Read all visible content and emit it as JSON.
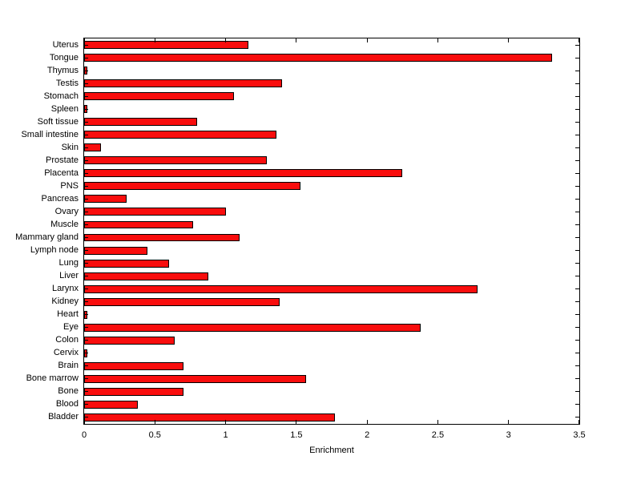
{
  "chart_data": {
    "type": "bar",
    "orientation": "horizontal",
    "title": "",
    "xlabel": "Enrichment",
    "ylabel": "",
    "xlim": [
      0,
      3.5
    ],
    "xticks": [
      0,
      0.5,
      1,
      1.5,
      2,
      2.5,
      3,
      3.5
    ],
    "xtick_labels": [
      "0",
      "0.5",
      "1",
      "1.5",
      "2",
      "2.5",
      "3",
      "3.5"
    ],
    "grid": false,
    "legend": false,
    "bar_color": "#f90d0d",
    "bar_edge_color": "#000000",
    "categories": [
      "Uterus",
      "Tongue",
      "Thymus",
      "Testis",
      "Stomach",
      "Spleen",
      "Soft tissue",
      "Small intestine",
      "Skin",
      "Prostate",
      "Placenta",
      "PNS",
      "Pancreas",
      "Ovary",
      "Muscle",
      "Mammary gland",
      "Lymph node",
      "Lung",
      "Liver",
      "Larynx",
      "Kidney",
      "Heart",
      "Eye",
      "Colon",
      "Cervix",
      "Brain",
      "Bone marrow",
      "Bone",
      "Blood",
      "Bladder"
    ],
    "values": [
      1.16,
      3.31,
      0.02,
      1.4,
      1.06,
      0.02,
      0.8,
      1.36,
      0.12,
      1.29,
      2.25,
      1.53,
      0.3,
      1.0,
      0.77,
      1.1,
      0.45,
      0.6,
      0.88,
      2.78,
      1.38,
      0.02,
      2.38,
      0.64,
      0.02,
      0.7,
      1.57,
      0.7,
      0.38,
      1.77
    ]
  }
}
